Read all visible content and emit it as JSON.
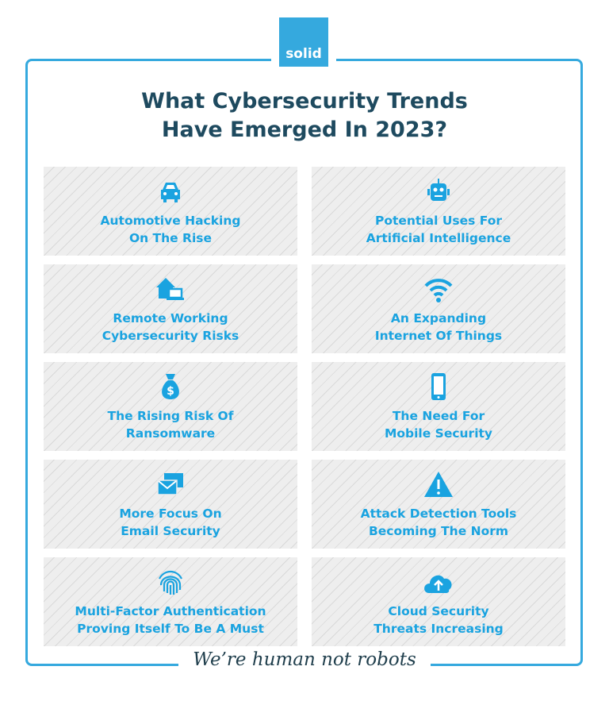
{
  "brand": {
    "logo_text": "solid",
    "accent": "#35a9de"
  },
  "title": {
    "line1": "What Cybersecurity Trends",
    "line2": "Have Emerged In 2023?"
  },
  "cards": [
    {
      "icon": "car-icon",
      "line1": "Automotive Hacking",
      "line2": "On The Rise"
    },
    {
      "icon": "robot-icon",
      "line1": "Potential Uses For",
      "line2": "Artificial Intelligence"
    },
    {
      "icon": "home-laptop-icon",
      "line1": "Remote Working",
      "line2": "Cybersecurity Risks"
    },
    {
      "icon": "wifi-icon",
      "line1": "An Expanding",
      "line2": "Internet Of Things"
    },
    {
      "icon": "money-bag-icon",
      "line1": "The Rising Risk Of",
      "line2": "Ransomware"
    },
    {
      "icon": "smartphone-icon",
      "line1": "The Need For",
      "line2": "Mobile Security"
    },
    {
      "icon": "email-icon",
      "line1": "More Focus On",
      "line2": "Email Security"
    },
    {
      "icon": "warning-icon",
      "line1": "Attack Detection Tools",
      "line2": "Becoming The Norm"
    },
    {
      "icon": "fingerprint-icon",
      "line1": "Multi-Factor Authentication",
      "line2": "Proving Itself To Be A Must"
    },
    {
      "icon": "cloud-upload-icon",
      "line1": "Cloud Security",
      "line2": "Threats Increasing"
    }
  ],
  "footer": {
    "tagline": "We’re human not robots"
  }
}
